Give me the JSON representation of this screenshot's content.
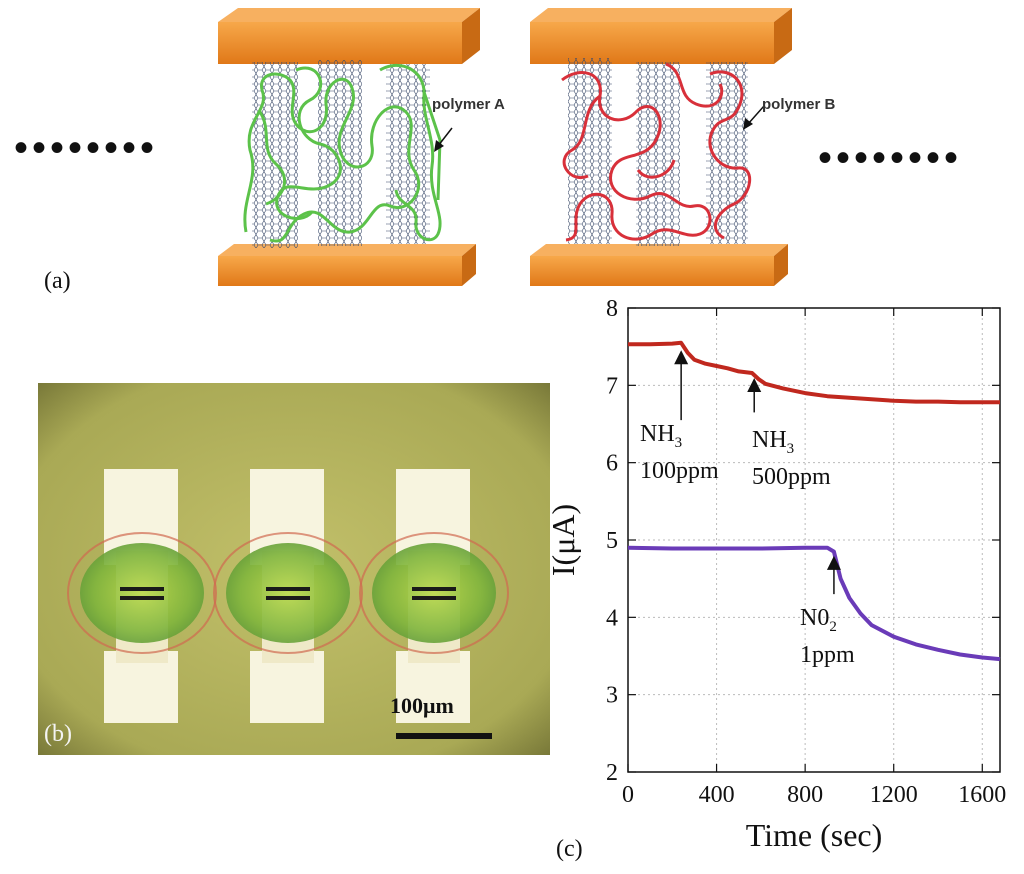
{
  "panel_a": {
    "label": "(a)",
    "polymer_a_label": "polymer A",
    "polymer_b_label": "polymer B",
    "left_dots": "••••••••",
    "right_dots": "••••••••",
    "colors": {
      "electrode": "#f08a22",
      "polymer_a": "#5cc24a",
      "polymer_b": "#d8303a",
      "nanotube": "#3a4a6a"
    }
  },
  "panel_b": {
    "label": "(b)",
    "scale_bar_label": "100μm",
    "colors": {
      "background": "#b8b860",
      "pad": "#f6f3da",
      "film": "#7aa83a"
    }
  },
  "panel_c": {
    "label": "(c)",
    "annotations": {
      "nh3_100_formula": "NH",
      "nh3_100_sub": "3",
      "nh3_100_conc": "100ppm",
      "nh3_500_formula": "NH",
      "nh3_500_sub": "3",
      "nh3_500_conc": "500ppm",
      "no2_formula": "N0",
      "no2_sub": "2",
      "no2_conc": "1ppm"
    }
  },
  "chart_data": {
    "type": "line",
    "xlabel": "Time (sec)",
    "ylabel": "I(μA)",
    "xlim": [
      0,
      1680
    ],
    "ylim": [
      2,
      8
    ],
    "xticks": [
      0,
      400,
      800,
      1200,
      1600
    ],
    "yticks": [
      2,
      3,
      4,
      5,
      6,
      7,
      8
    ],
    "grid": true,
    "series": [
      {
        "color": "#c0281e",
        "x": [
          0,
          100,
          200,
          240,
          270,
          300,
          350,
          400,
          450,
          500,
          560,
          590,
          620,
          700,
          800,
          900,
          1000,
          1100,
          1200,
          1300,
          1400,
          1500,
          1600,
          1680
        ],
        "y": [
          7.53,
          7.53,
          7.54,
          7.55,
          7.42,
          7.33,
          7.28,
          7.25,
          7.22,
          7.18,
          7.16,
          7.08,
          7.02,
          6.96,
          6.9,
          6.86,
          6.84,
          6.82,
          6.8,
          6.79,
          6.79,
          6.78,
          6.78,
          6.78
        ]
      },
      {
        "color": "#6a3bb8",
        "x": [
          0,
          200,
          400,
          600,
          800,
          900,
          930,
          960,
          1000,
          1050,
          1100,
          1200,
          1300,
          1400,
          1500,
          1600,
          1680
        ],
        "y": [
          4.9,
          4.89,
          4.89,
          4.89,
          4.9,
          4.9,
          4.85,
          4.5,
          4.25,
          4.05,
          3.9,
          3.75,
          3.65,
          3.58,
          3.52,
          3.48,
          3.46
        ]
      }
    ]
  }
}
